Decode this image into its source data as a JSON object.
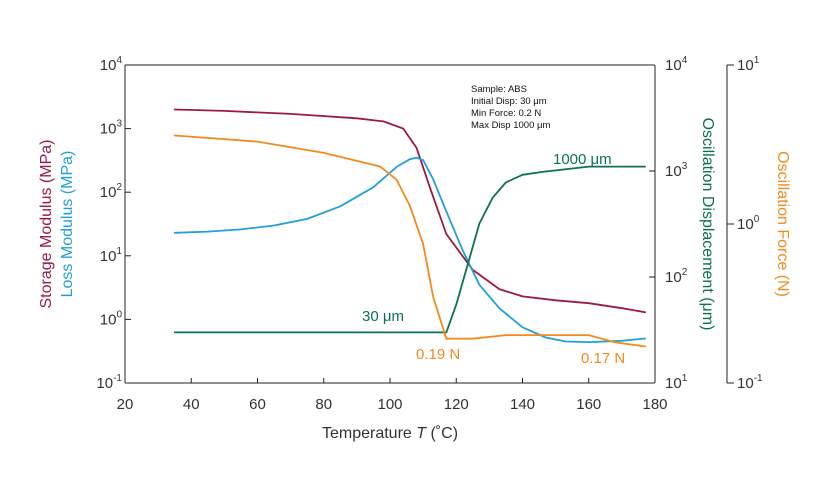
{
  "chart_data": {
    "type": "line",
    "xlabel_main": "Temperature ",
    "xlabel_symbol": "T",
    "xlabel_unit": " (˚C)",
    "x_ticks": [
      "20",
      "40",
      "60",
      "80",
      "100",
      "120",
      "140",
      "160",
      "180"
    ],
    "xlim": [
      20,
      180
    ],
    "left_axis": {
      "ylabel_storage": "Storage Modulus (MPa)",
      "ylabel_loss": "Loss Modulus (MPa)",
      "scale": "log",
      "ylim": [
        0.1,
        10000
      ],
      "ticks": [
        {
          "base": "10",
          "exp": "4"
        },
        {
          "base": "10",
          "exp": "3"
        },
        {
          "base": "10",
          "exp": "2"
        },
        {
          "base": "10",
          "exp": "1"
        },
        {
          "base": "10",
          "exp": "0"
        },
        {
          "base": "10",
          "exp": "-1"
        }
      ]
    },
    "right_axis_1": {
      "ylabel": "Oscillation Displacement (μm)",
      "scale": "log",
      "ylim": [
        10,
        10000
      ],
      "ticks": [
        {
          "base": "10",
          "exp": "4"
        },
        {
          "base": "10",
          "exp": "3"
        },
        {
          "base": "10",
          "exp": "2"
        },
        {
          "base": "10",
          "exp": "1"
        }
      ]
    },
    "right_axis_2": {
      "ylabel": "Oscillation Force (N)",
      "scale": "log",
      "ylim": [
        0.1,
        10
      ],
      "ticks": [
        {
          "base": "10",
          "exp": "1"
        },
        {
          "base": "10",
          "exp": "0"
        },
        {
          "base": "10",
          "exp": "-1"
        }
      ]
    },
    "note": [
      "Sample: ABS",
      "Initial Disp: 30 μm",
      "Min Force: 0.2 N",
      "Max Disp 1000 μm"
    ],
    "annotations": {
      "disp_low": "30 μm",
      "disp_high": "1000 μm",
      "force_low": "0.19 N",
      "force_end": "0.17 N"
    },
    "colors": {
      "storage": "#9b1b42",
      "loss": "#1ea0dc",
      "displacement": "#0b7253",
      "force": "#f28a1d",
      "axis": "#222222"
    },
    "series": [
      {
        "key": "storage",
        "axis": "left",
        "x": [
          35,
          50,
          70,
          90,
          98,
          104,
          108,
          112,
          117,
          125,
          133,
          140,
          150,
          160,
          170,
          177
        ],
        "y": [
          2000,
          1900,
          1700,
          1450,
          1300,
          1000,
          500,
          120,
          22,
          6,
          3,
          2.3,
          2.0,
          1.8,
          1.5,
          1.3
        ]
      },
      {
        "key": "loss",
        "axis": "left",
        "x": [
          35,
          45,
          55,
          65,
          75,
          85,
          95,
          102,
          106,
          108,
          110,
          113,
          117,
          122,
          127,
          133,
          140,
          147,
          153,
          160,
          170,
          177
        ],
        "y": [
          23,
          24,
          26,
          30,
          38,
          60,
          120,
          250,
          330,
          350,
          320,
          160,
          50,
          12,
          3.5,
          1.5,
          0.75,
          0.52,
          0.45,
          0.44,
          0.46,
          0.5
        ]
      },
      {
        "key": "displacement",
        "axis": "right1",
        "x": [
          35,
          60,
          90,
          110,
          117,
          120,
          124,
          127,
          131,
          135,
          140,
          146,
          152,
          160,
          177
        ],
        "y": [
          30,
          30,
          30,
          30,
          30,
          55,
          150,
          320,
          560,
          780,
          920,
          980,
          1030,
          1100,
          1100
        ]
      },
      {
        "key": "force",
        "axis": "right2",
        "x": [
          35,
          60,
          80,
          97,
          102,
          106,
          110,
          113,
          117,
          125,
          135,
          150,
          160,
          168,
          177
        ],
        "y": [
          3.6,
          3.3,
          2.8,
          2.3,
          1.9,
          1.3,
          0.75,
          0.35,
          0.19,
          0.19,
          0.2,
          0.2,
          0.2,
          0.18,
          0.17
        ]
      }
    ]
  }
}
